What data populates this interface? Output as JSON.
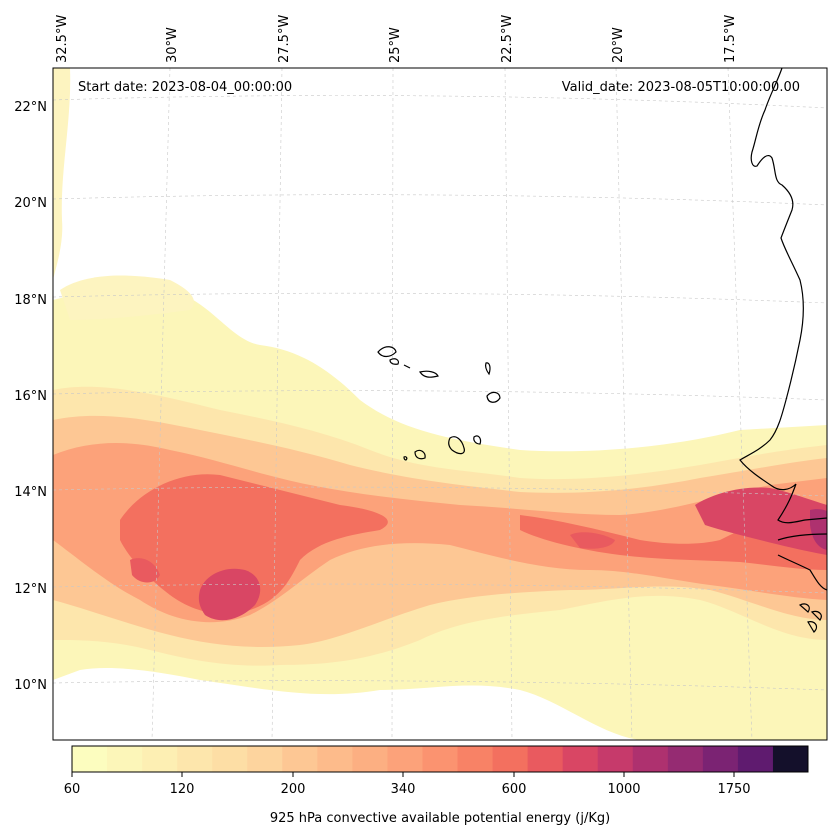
{
  "map": {
    "start_date": "Start date: 2023-08-04_00:00:00",
    "valid_date": "Valid_date: 2023-08-05T10:00:00.00",
    "longitude_labels": [
      "32.5°W",
      "30°W",
      "27.5°W",
      "25°W",
      "22.5°W",
      "20°W",
      "17.5°W"
    ],
    "latitude_labels": [
      "22°N",
      "20°N",
      "18°N",
      "16°N",
      "14°N",
      "12°N",
      "10°N"
    ]
  },
  "colorbar": {
    "label": "925 hPa convective available potential energy (j/Kg)",
    "tick_labels": [
      "60",
      "120",
      "200",
      "340",
      "600",
      "1000",
      "1750"
    ],
    "colors": [
      "#fcfdbf",
      "#fcf6b9",
      "#fdefb3",
      "#fde6ac",
      "#fddea5",
      "#fdd49e",
      "#fdc794",
      "#fdbb8b",
      "#fcaf82",
      "#fca27a",
      "#fb9370",
      "#f88266",
      "#f3705f",
      "#e95a5f",
      "#d94664",
      "#c63a6b",
      "#ae316f",
      "#952b72",
      "#7b2373",
      "#5f1b6f",
      "#14102b"
    ]
  }
}
